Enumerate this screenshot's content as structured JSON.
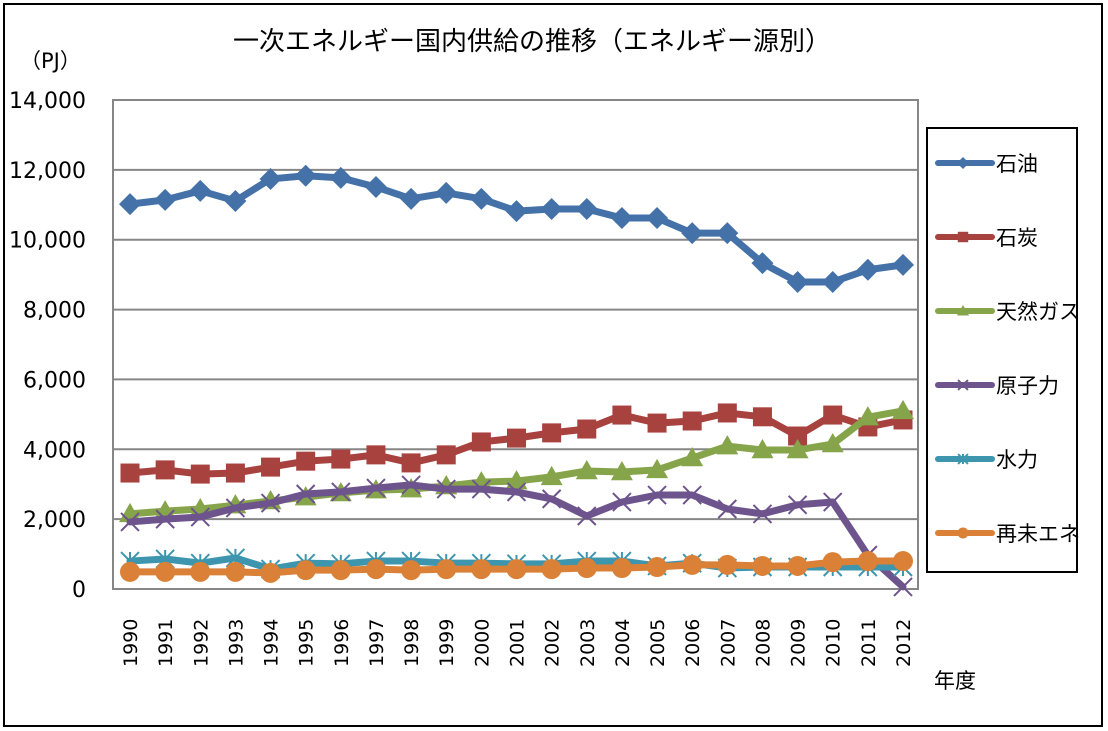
{
  "chart_data": {
    "type": "line",
    "title": "一次エネルギー国内供給の推移（エネルギー源別）",
    "ylabel": "（PJ）",
    "xlabel": "年度",
    "ylim": [
      0,
      14000
    ],
    "yticks": [
      0,
      2000,
      4000,
      6000,
      8000,
      10000,
      12000,
      14000
    ],
    "ytick_labels": [
      "0",
      "2,000",
      "4,000",
      "6,000",
      "8,000",
      "10,000",
      "12,000",
      "14,000"
    ],
    "grid": true,
    "legend_position": "right",
    "categories": [
      "1990",
      "1991",
      "1992",
      "1993",
      "1994",
      "1995",
      "1996",
      "1997",
      "1998",
      "1999",
      "2000",
      "2001",
      "2002",
      "2003",
      "2004",
      "2005",
      "2006",
      "2007",
      "2008",
      "2009",
      "2010",
      "2011",
      "2012"
    ],
    "series": [
      {
        "name": "石油",
        "color": "#4472A8",
        "marker": "diamond",
        "values": [
          11020,
          11140,
          11400,
          11110,
          11740,
          11830,
          11770,
          11510,
          11170,
          11340,
          11170,
          10820,
          10880,
          10880,
          10620,
          10620,
          10190,
          10190,
          9330,
          8790,
          8790,
          9140,
          9280
        ]
      },
      {
        "name": "石炭",
        "color": "#A8423F",
        "marker": "square",
        "values": [
          3320,
          3410,
          3290,
          3320,
          3490,
          3660,
          3720,
          3840,
          3610,
          3840,
          4210,
          4320,
          4470,
          4580,
          4980,
          4750,
          4810,
          5040,
          4930,
          4380,
          4980,
          4640,
          4840
        ]
      },
      {
        "name": "天然ガス",
        "color": "#86A44A",
        "marker": "triangle",
        "values": [
          2150,
          2230,
          2290,
          2400,
          2520,
          2630,
          2750,
          2830,
          2860,
          2950,
          3060,
          3090,
          3210,
          3380,
          3350,
          3410,
          3750,
          4090,
          3980,
          3980,
          4150,
          4920,
          5100
        ]
      },
      {
        "name": "原子力",
        "color": "#6E548D",
        "marker": "x",
        "values": [
          1920,
          2000,
          2060,
          2320,
          2460,
          2720,
          2780,
          2890,
          2980,
          2860,
          2860,
          2780,
          2580,
          2090,
          2490,
          2690,
          2690,
          2290,
          2150,
          2410,
          2490,
          970,
          60
        ]
      },
      {
        "name": "水力",
        "color": "#3D96AE",
        "marker": "star",
        "values": [
          800,
          860,
          740,
          890,
          570,
          740,
          720,
          800,
          800,
          740,
          740,
          720,
          720,
          800,
          800,
          660,
          740,
          600,
          630,
          630,
          630,
          630,
          630
        ]
      },
      {
        "name": "再未エネ",
        "color": "#DA8137",
        "marker": "circle",
        "values": [
          490,
          490,
          490,
          490,
          460,
          540,
          540,
          570,
          540,
          570,
          570,
          570,
          570,
          600,
          600,
          630,
          690,
          690,
          660,
          660,
          770,
          800,
          800
        ]
      }
    ]
  }
}
